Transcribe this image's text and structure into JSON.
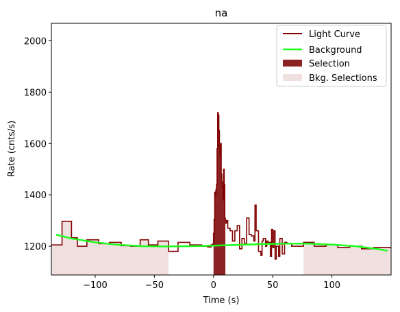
{
  "chart_data": {
    "type": "line",
    "title": "na",
    "xlabel": "Time (s)",
    "ylabel": "Rate (cnts/s)",
    "xlim": [
      -137,
      150
    ],
    "ylim": [
      1088,
      2068
    ],
    "xticks": [
      -100,
      -50,
      0,
      50,
      100
    ],
    "yticks": [
      1200,
      1400,
      1600,
      1800,
      2000
    ],
    "grid": false,
    "legend_position": "top-right",
    "legend": [
      {
        "label": "Light Curve",
        "kind": "line",
        "color": "#800000"
      },
      {
        "label": "Background",
        "kind": "line",
        "color": "#19ff19"
      },
      {
        "label": "Selection",
        "kind": "patch",
        "color": "#8b2323"
      },
      {
        "label": "Bkg. Selections",
        "kind": "patch",
        "color": "#f0e0e0"
      }
    ],
    "colors": {
      "light_curve": "#800000",
      "background": "#19ff19",
      "selection": "#8b2323",
      "bkg_selection": "#f0e0e0"
    },
    "selection_interval": [
      0,
      10
    ],
    "bkg_selection_intervals": [
      [
        -137,
        -38
      ],
      [
        76,
        150
      ]
    ],
    "light_curve_edges": [
      -137,
      -128,
      -120,
      -115,
      -107,
      -97,
      -88,
      -78,
      -70,
      -62,
      -55,
      -47,
      -38,
      -30,
      -20,
      -10,
      -5,
      -2,
      -1,
      0,
      0.5,
      1,
      1.5,
      2,
      2.5,
      3,
      3.5,
      4,
      4.5,
      5,
      5.5,
      6,
      6.5,
      7,
      7.5,
      8,
      8.5,
      9,
      9.5,
      10,
      11,
      12,
      14,
      16,
      18,
      20,
      22,
      24,
      26,
      28,
      30,
      32,
      34,
      35,
      36,
      38,
      40,
      41,
      42,
      44,
      45,
      46,
      48,
      49,
      50,
      51,
      52,
      53,
      54,
      55,
      56,
      58,
      60,
      62,
      66,
      76,
      85,
      95,
      105,
      115,
      125,
      135,
      150
    ],
    "light_curve_rates": [
      1205,
      1297,
      1233,
      1200,
      1225,
      1210,
      1215,
      1202,
      1200,
      1225,
      1205,
      1220,
      1180,
      1215,
      1205,
      1200,
      1197,
      1205,
      1208,
      1250,
      1305,
      1410,
      1400,
      1420,
      1440,
      1580,
      1720,
      1710,
      1650,
      1590,
      1550,
      1600,
      1480,
      1450,
      1430,
      1380,
      1500,
      1440,
      1310,
      1290,
      1300,
      1270,
      1260,
      1220,
      1260,
      1280,
      1190,
      1230,
      1210,
      1310,
      1245,
      1240,
      1220,
      1360,
      1260,
      1180,
      1165,
      1220,
      1230,
      1200,
      1220,
      1215,
      1160,
      1265,
      1195,
      1260,
      1150,
      1200,
      1200,
      1160,
      1230,
      1170,
      1215,
      1210,
      1200,
      1215,
      1200,
      1205,
      1195,
      1200,
      1190,
      1195
    ],
    "background_x": [
      -133,
      -120,
      -100,
      -80,
      -60,
      -40,
      -20,
      0,
      20,
      40,
      60,
      80,
      100,
      120,
      140,
      147
    ],
    "background_y": [
      1245,
      1230,
      1215,
      1205,
      1200,
      1199,
      1200,
      1202,
      1205,
      1208,
      1210,
      1210,
      1206,
      1200,
      1188,
      1182
    ]
  }
}
